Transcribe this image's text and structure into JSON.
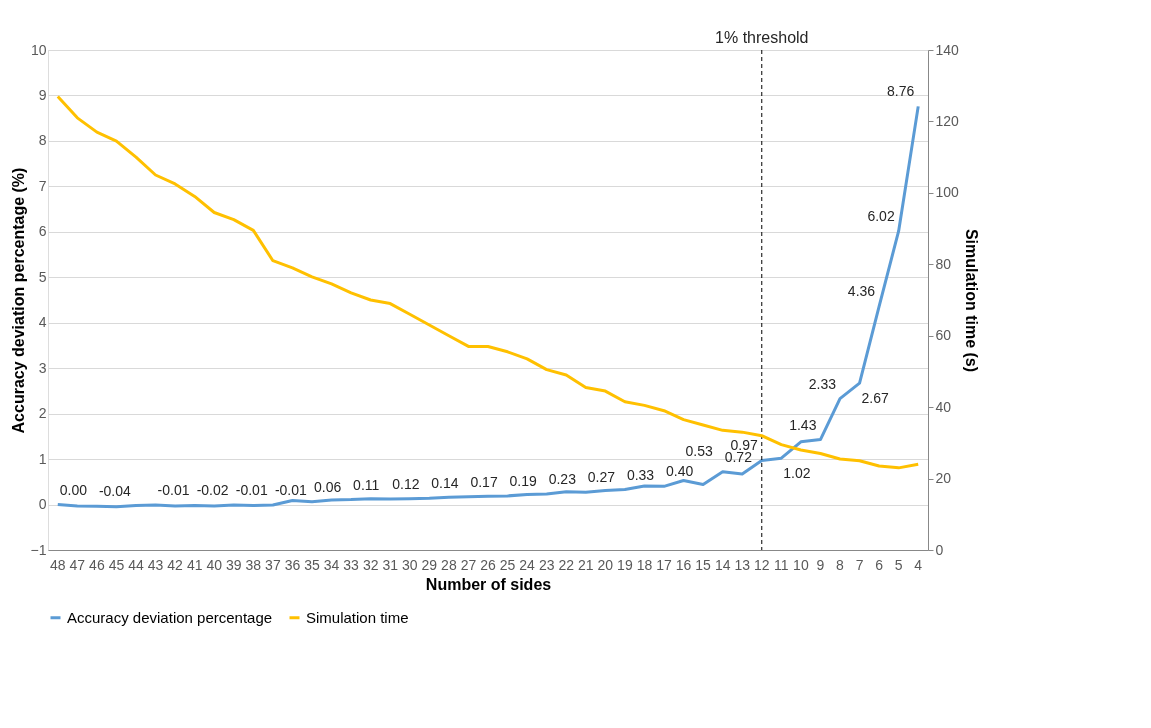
{
  "chart_data": {
    "type": "line",
    "xlabel": "Number of sides",
    "ylabel": "Accuracy deviation percentage (%)",
    "y2label": "Simulation time (s)",
    "categories": [
      "48",
      "47",
      "46",
      "45",
      "44",
      "43",
      "42",
      "41",
      "40",
      "39",
      "38",
      "37",
      "36",
      "35",
      "34",
      "33",
      "32",
      "31",
      "30",
      "29",
      "28",
      "27",
      "26",
      "25",
      "24",
      "23",
      "22",
      "21",
      "20",
      "19",
      "18",
      "17",
      "16",
      "15",
      "14",
      "13",
      "12",
      "11",
      "10",
      "9",
      "8",
      "7",
      "6",
      "5",
      "4"
    ],
    "series": [
      {
        "name": "Accuracy deviation percentage",
        "color": "#5b9bd5",
        "values": [
          0.0,
          -0.03,
          -0.04,
          -0.05,
          -0.02,
          -0.01,
          -0.03,
          -0.02,
          -0.03,
          -0.01,
          -0.02,
          -0.01,
          0.09,
          0.06,
          0.1,
          0.11,
          0.13,
          0.12,
          0.13,
          0.14,
          0.16,
          0.17,
          0.18,
          0.19,
          0.22,
          0.23,
          0.28,
          0.27,
          0.31,
          0.33,
          0.41,
          0.4,
          0.53,
          0.44,
          0.72,
          0.67,
          0.97,
          1.02,
          1.38,
          1.43,
          2.33,
          2.67,
          4.36,
          6.02,
          8.76
        ],
        "value_labels": [
          "0.00",
          null,
          "-0.04",
          null,
          null,
          "-0.01",
          null,
          "-0.02",
          null,
          "-0.01",
          null,
          "-0.01",
          null,
          "0.06",
          null,
          "0.11",
          null,
          "0.12",
          null,
          "0.14",
          null,
          "0.17",
          null,
          "0.19",
          null,
          "0.23",
          null,
          "0.27",
          null,
          "0.33",
          null,
          "0.40",
          "0.53",
          null,
          "0.72",
          null,
          "0.97",
          "1.02",
          null,
          "1.43",
          "2.33",
          "2.67",
          "4.36",
          "6.02",
          "8.76"
        ]
      },
      {
        "name": "Simulation time",
        "color": "#ffc000",
        "axis": "y2",
        "values": [
          127,
          121,
          117,
          114.5,
          110,
          105,
          102.5,
          99,
          94.5,
          92.5,
          89.5,
          81,
          79,
          76.5,
          74.5,
          72,
          70,
          69,
          66,
          63,
          60,
          57,
          57,
          55.5,
          53.5,
          50.5,
          49,
          45.5,
          44.5,
          41.5,
          40.5,
          39,
          36.5,
          35,
          33.5,
          33,
          32,
          29.5,
          28,
          27,
          25.5,
          25,
          23.5,
          23,
          24
        ]
      }
    ],
    "ylim": [
      -1,
      10
    ],
    "yticks": [
      -1,
      0,
      1,
      2,
      3,
      4,
      5,
      6,
      7,
      8,
      9,
      10
    ],
    "y2lim": [
      0,
      140
    ],
    "y2ticks": [
      0,
      20,
      40,
      60,
      80,
      100,
      120,
      140
    ],
    "ref_lines": [
      {
        "axis": "x",
        "value": "12",
        "label": "1% threshold",
        "color": "#000000",
        "line_style": "dashed"
      }
    ],
    "grid": "y",
    "legend": "bottom",
    "marker": "none",
    "line_style": "solid"
  }
}
